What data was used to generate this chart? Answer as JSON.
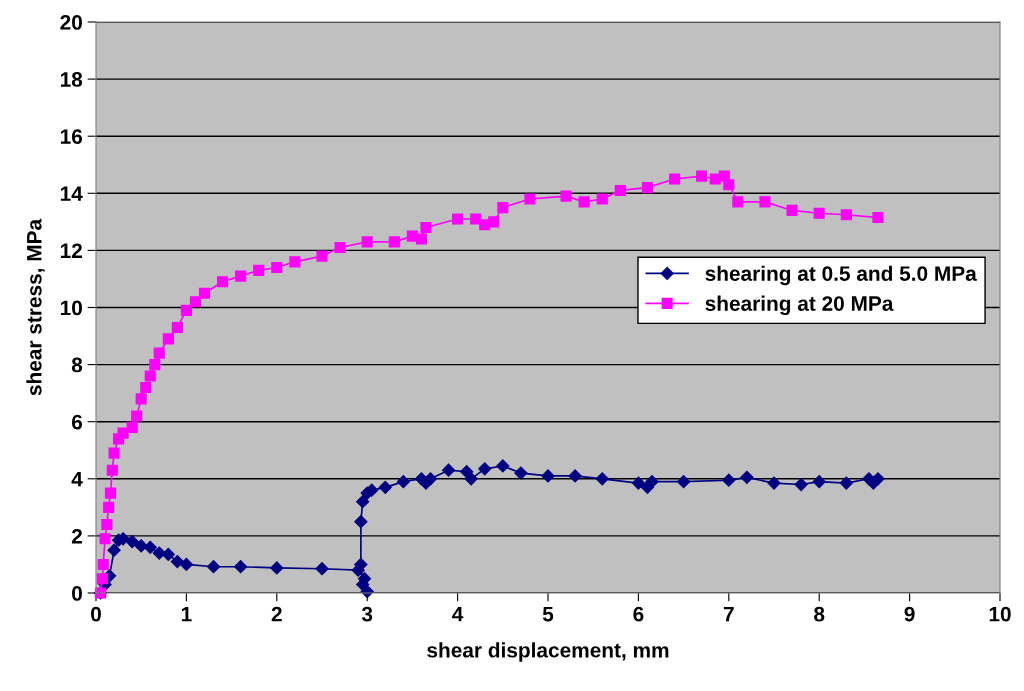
{
  "chart_data": {
    "type": "line",
    "xlabel": "shear displacement, mm",
    "ylabel": "shear stress, MPa",
    "xlim": [
      0,
      10
    ],
    "xticks": [
      0,
      1,
      2,
      3,
      4,
      5,
      6,
      7,
      8,
      9,
      10
    ],
    "ylim": [
      0,
      20
    ],
    "yticks": [
      0,
      2,
      4,
      6,
      8,
      10,
      12,
      14,
      16,
      18,
      20
    ],
    "grid": "y",
    "legend": "right",
    "line_style": "solid",
    "series": [
      {
        "name": "shearing at 0.5 and 5.0 MPa",
        "color": "#000080",
        "marker": "diamond",
        "x": [
          0.05,
          0.1,
          0.15,
          0.2,
          0.25,
          0.3,
          0.4,
          0.5,
          0.6,
          0.7,
          0.8,
          0.9,
          1.0,
          1.3,
          1.6,
          2.0,
          2.5,
          2.9,
          2.97,
          3.0,
          2.95,
          2.93,
          2.93,
          2.95,
          3.0,
          3.05,
          3.2,
          3.4,
          3.6,
          3.65,
          3.7,
          3.9,
          4.1,
          4.15,
          4.3,
          4.5,
          4.7,
          5.0,
          5.3,
          5.6,
          6.0,
          6.1,
          6.15,
          6.5,
          7.0,
          7.2,
          7.5,
          7.8,
          8.0,
          8.3,
          8.55,
          8.6,
          8.65
        ],
        "values": [
          0,
          0.3,
          0.6,
          1.5,
          1.85,
          1.9,
          1.8,
          1.65,
          1.6,
          1.4,
          1.35,
          1.1,
          1.0,
          0.92,
          0.92,
          0.88,
          0.85,
          0.8,
          0.5,
          0.05,
          0.3,
          1.0,
          2.5,
          3.2,
          3.5,
          3.6,
          3.7,
          3.9,
          4.0,
          3.85,
          4.0,
          4.3,
          4.25,
          4.0,
          4.35,
          4.45,
          4.2,
          4.1,
          4.1,
          4.0,
          3.85,
          3.7,
          3.9,
          3.9,
          3.95,
          4.05,
          3.85,
          3.8,
          3.9,
          3.85,
          4.0,
          3.85,
          4.0
        ]
      },
      {
        "name": "shearing at 20 MPa",
        "color": "#ff00ff",
        "marker": "square",
        "x": [
          0.05,
          0.07,
          0.08,
          0.1,
          0.12,
          0.14,
          0.16,
          0.18,
          0.2,
          0.25,
          0.3,
          0.4,
          0.45,
          0.5,
          0.55,
          0.6,
          0.65,
          0.7,
          0.8,
          0.9,
          1.0,
          1.1,
          1.2,
          1.4,
          1.6,
          1.8,
          2.0,
          2.2,
          2.5,
          2.7,
          3.0,
          3.3,
          3.5,
          3.6,
          3.65,
          4.0,
          4.2,
          4.3,
          4.4,
          4.5,
          4.8,
          5.2,
          5.4,
          5.6,
          5.8,
          6.1,
          6.4,
          6.7,
          6.85,
          6.95,
          7.0,
          7.1,
          7.4,
          7.7,
          8.0,
          8.3,
          8.65
        ],
        "values": [
          0,
          0.5,
          1,
          1.9,
          2.4,
          3,
          3.5,
          4.3,
          4.9,
          5.4,
          5.6,
          5.8,
          6.2,
          6.8,
          7.2,
          7.6,
          8.0,
          8.4,
          8.9,
          9.3,
          9.9,
          10.2,
          10.5,
          10.9,
          11.1,
          11.3,
          11.4,
          11.6,
          11.8,
          12.1,
          12.3,
          12.3,
          12.5,
          12.4,
          12.8,
          13.1,
          13.1,
          12.9,
          13.0,
          13.5,
          13.8,
          13.9,
          13.7,
          13.8,
          14.1,
          14.2,
          14.5,
          14.6,
          14.5,
          14.6,
          14.3,
          13.7,
          13.7,
          13.4,
          13.3,
          13.25,
          13.15
        ]
      }
    ]
  }
}
